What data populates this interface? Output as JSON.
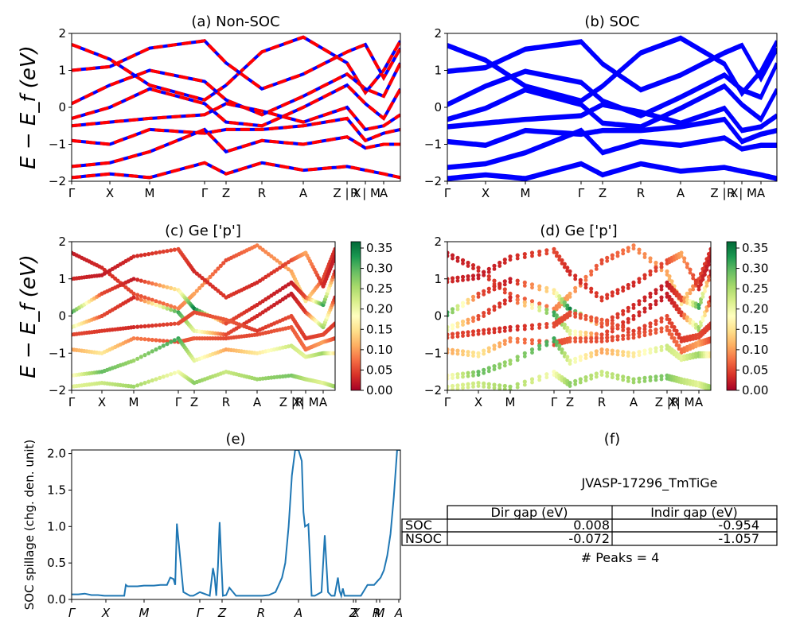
{
  "chart_data": [
    {
      "panel": "a",
      "type": "line",
      "title": "(a) Non-SOC",
      "ylabel": "E − E_f (eV)",
      "ylim": [
        -2,
        2
      ],
      "yticks": [
        "2",
        "1",
        "0",
        "−1",
        "−2"
      ],
      "kpath_labels": [
        "Γ",
        "X",
        "M",
        "Γ",
        "Z",
        "R",
        "A",
        "Z | X",
        "R | M",
        "A"
      ],
      "series": [
        {
          "color": "#ff0000",
          "dashed": true,
          "values": []
        },
        {
          "color": "#0000ff",
          "dashed": false,
          "values": []
        }
      ],
      "bands": [
        {
          "y": [
            1.7,
            1.3,
            0.6,
            0.2,
            0.6,
            1.5,
            1.9,
            1.2,
            0.4,
            1.0,
            1.8
          ]
        },
        {
          "y": [
            1.0,
            1.1,
            1.6,
            1.8,
            1.2,
            0.5,
            0.9,
            1.5,
            1.7,
            0.8,
            1.6
          ]
        },
        {
          "y": [
            0.1,
            0.6,
            1.0,
            0.7,
            0.2,
            -0.2,
            0.3,
            0.9,
            0.5,
            0.3,
            1.2
          ]
        },
        {
          "y": [
            -0.3,
            0.0,
            0.5,
            0.1,
            -0.4,
            -0.5,
            0.0,
            0.6,
            0.1,
            -0.3,
            0.5
          ]
        },
        {
          "y": [
            -0.5,
            -0.4,
            -0.3,
            -0.2,
            0.1,
            -0.1,
            -0.4,
            0.0,
            -0.6,
            -0.5,
            -0.2
          ]
        },
        {
          "y": [
            -0.9,
            -1.0,
            -0.6,
            -0.7,
            -0.6,
            -0.6,
            -0.5,
            -0.3,
            -0.9,
            -0.7,
            -0.6
          ]
        },
        {
          "y": [
            -1.6,
            -1.5,
            -1.2,
            -0.6,
            -1.2,
            -0.9,
            -1.0,
            -0.8,
            -1.1,
            -1.0,
            -1.0
          ]
        },
        {
          "y": [
            -1.9,
            -1.8,
            -1.9,
            -1.5,
            -1.8,
            -1.5,
            -1.7,
            -1.6,
            -1.7,
            -1.8,
            -1.9
          ]
        }
      ]
    },
    {
      "panel": "b",
      "type": "line",
      "title": "(b) SOC",
      "ylim": [
        -2,
        2
      ],
      "yticks": [
        "2",
        "1",
        "0",
        "−1",
        "−2"
      ],
      "kpath_labels": [
        "Γ",
        "X",
        "M",
        "Γ",
        "Z",
        "R",
        "A",
        "Z | X",
        "R | M",
        "A"
      ],
      "bands": [
        {
          "y": [
            1.7,
            1.3,
            0.6,
            0.2,
            0.6,
            1.5,
            1.9,
            1.2,
            0.4,
            1.0,
            1.8
          ]
        },
        {
          "y": [
            1.0,
            1.1,
            1.6,
            1.8,
            1.2,
            0.5,
            0.9,
            1.5,
            1.7,
            0.8,
            1.6
          ]
        },
        {
          "y": [
            0.1,
            0.6,
            1.0,
            0.7,
            0.2,
            -0.2,
            0.3,
            0.9,
            0.5,
            0.3,
            1.2
          ]
        },
        {
          "y": [
            -0.3,
            0.0,
            0.5,
            0.1,
            -0.4,
            -0.5,
            0.0,
            0.6,
            0.1,
            -0.3,
            0.5
          ]
        },
        {
          "y": [
            -0.5,
            -0.4,
            -0.3,
            -0.2,
            0.1,
            -0.1,
            -0.4,
            0.0,
            -0.6,
            -0.5,
            -0.2
          ]
        },
        {
          "y": [
            -0.9,
            -1.0,
            -0.6,
            -0.7,
            -0.6,
            -0.6,
            -0.5,
            -0.3,
            -0.9,
            -0.7,
            -0.6
          ]
        },
        {
          "y": [
            -1.6,
            -1.5,
            -1.2,
            -0.6,
            -1.2,
            -0.9,
            -1.0,
            -0.8,
            -1.1,
            -1.0,
            -1.0
          ]
        },
        {
          "y": [
            -1.9,
            -1.8,
            -1.9,
            -1.5,
            -1.8,
            -1.5,
            -1.7,
            -1.6,
            -1.7,
            -1.8,
            -1.9
          ]
        }
      ]
    },
    {
      "panel": "c",
      "type": "scatter",
      "title": "(c)  Ge ['p']",
      "ylabel": "E − E_f (eV)",
      "ylim": [
        -2,
        2
      ],
      "yticks": [
        "2",
        "1",
        "0",
        "−1",
        "−2"
      ],
      "kpath_labels": [
        "Γ",
        "X",
        "M",
        "Γ",
        "Z",
        "R",
        "A",
        "Z |R",
        "X| M",
        "A"
      ],
      "colorbar": {
        "min": 0.0,
        "max": 0.35,
        "ticks": [
          "0.35",
          "0.30",
          "0.25",
          "0.20",
          "0.15",
          "0.10",
          "0.05",
          "0.00"
        ],
        "colormap": "RdYlGn"
      },
      "bands": [
        {
          "y": [
            1.7,
            1.3,
            0.6,
            0.2,
            0.6,
            1.5,
            1.9,
            1.2,
            0.4,
            1.0,
            1.8
          ],
          "w": [
            0.02,
            0.03,
            0.05,
            0.08,
            0.1,
            0.05,
            0.08,
            0.1,
            0.15,
            0.05,
            0.03
          ]
        },
        {
          "y": [
            1.0,
            1.1,
            1.6,
            1.8,
            1.2,
            0.5,
            0.9,
            1.5,
            1.7,
            0.8,
            1.6
          ],
          "w": [
            0.03,
            0.02,
            0.03,
            0.05,
            0.03,
            0.04,
            0.03,
            0.05,
            0.1,
            0.03,
            0.02
          ]
        },
        {
          "y": [
            0.1,
            0.6,
            1.0,
            0.7,
            0.2,
            -0.2,
            0.3,
            0.9,
            0.5,
            0.3,
            1.2
          ],
          "w": [
            0.3,
            0.05,
            0.02,
            0.15,
            0.33,
            0.05,
            0.03,
            0.02,
            0.05,
            0.3,
            0.02
          ]
        },
        {
          "y": [
            -0.3,
            0.0,
            0.5,
            0.1,
            -0.4,
            -0.5,
            0.0,
            0.6,
            0.1,
            -0.3,
            0.5
          ],
          "w": [
            0.2,
            0.05,
            0.03,
            0.3,
            0.2,
            0.05,
            0.03,
            0.02,
            0.04,
            0.25,
            0.03
          ]
        },
        {
          "y": [
            -0.5,
            -0.4,
            -0.3,
            -0.2,
            0.1,
            -0.1,
            -0.4,
            0.0,
            -0.6,
            -0.5,
            -0.2
          ],
          "w": [
            0.05,
            0.04,
            0.03,
            0.05,
            0.05,
            0.06,
            0.04,
            0.05,
            0.04,
            0.05,
            0.04
          ]
        },
        {
          "y": [
            -0.9,
            -1.0,
            -0.6,
            -0.7,
            -0.6,
            -0.6,
            -0.5,
            -0.3,
            -0.9,
            -0.7,
            -0.6
          ],
          "w": [
            0.1,
            0.15,
            0.08,
            0.05,
            0.06,
            0.05,
            0.05,
            0.06,
            0.07,
            0.1,
            0.05
          ]
        },
        {
          "y": [
            -1.6,
            -1.5,
            -1.2,
            -0.6,
            -1.2,
            -0.9,
            -1.0,
            -0.8,
            -1.1,
            -1.0,
            -1.0
          ],
          "w": [
            0.17,
            0.28,
            0.25,
            0.3,
            0.2,
            0.1,
            0.15,
            0.22,
            0.2,
            0.25,
            0.15
          ]
        },
        {
          "y": [
            -1.9,
            -1.8,
            -1.9,
            -1.5,
            -1.8,
            -1.5,
            -1.7,
            -1.6,
            -1.7,
            -1.8,
            -1.9
          ],
          "w": [
            0.2,
            0.22,
            0.25,
            0.18,
            0.26,
            0.22,
            0.25,
            0.27,
            0.23,
            0.2,
            0.25
          ]
        }
      ]
    },
    {
      "panel": "d",
      "type": "scatter",
      "title": "(d) Ge ['p']",
      "ylim": [
        -2,
        2
      ],
      "yticks": [
        "2",
        "1",
        "0",
        "−1",
        "−2"
      ],
      "kpath_labels": [
        "Γ",
        "X",
        "M",
        "Γ",
        "Z",
        "R",
        "A",
        "Z |R",
        "X| M",
        "A"
      ],
      "colorbar": {
        "min": 0.0,
        "max": 0.35,
        "ticks": [
          "0.35",
          "0.30",
          "0.25",
          "0.20",
          "0.15",
          "0.10",
          "0.05",
          "0.00"
        ],
        "colormap": "RdYlGn"
      },
      "bands": [
        {
          "y": [
            1.7,
            1.3,
            0.6,
            0.2,
            0.6,
            1.5,
            1.9,
            1.2,
            0.4,
            1.0,
            1.8
          ],
          "w": [
            0.02,
            0.03,
            0.05,
            0.08,
            0.1,
            0.05,
            0.08,
            0.1,
            0.15,
            0.05,
            0.03
          ]
        },
        {
          "y": [
            1.0,
            1.1,
            1.6,
            1.8,
            1.2,
            0.5,
            0.9,
            1.5,
            1.7,
            0.8,
            1.6
          ],
          "w": [
            0.03,
            0.02,
            0.03,
            0.05,
            0.03,
            0.04,
            0.03,
            0.05,
            0.1,
            0.03,
            0.02
          ]
        },
        {
          "y": [
            0.1,
            0.6,
            1.0,
            0.7,
            0.2,
            -0.2,
            0.3,
            0.9,
            0.5,
            0.3,
            1.2
          ],
          "w": [
            0.3,
            0.05,
            0.02,
            0.15,
            0.33,
            0.05,
            0.03,
            0.02,
            0.05,
            0.3,
            0.02
          ]
        },
        {
          "y": [
            -0.3,
            0.0,
            0.5,
            0.1,
            -0.4,
            -0.5,
            0.0,
            0.6,
            0.1,
            -0.3,
            0.5
          ],
          "w": [
            0.2,
            0.05,
            0.03,
            0.3,
            0.2,
            0.05,
            0.03,
            0.02,
            0.04,
            0.25,
            0.03
          ]
        },
        {
          "y": [
            -0.5,
            -0.4,
            -0.3,
            -0.2,
            0.1,
            -0.1,
            -0.4,
            0.0,
            -0.6,
            -0.5,
            -0.2
          ],
          "w": [
            0.05,
            0.04,
            0.03,
            0.05,
            0.05,
            0.06,
            0.04,
            0.05,
            0.04,
            0.05,
            0.04
          ]
        },
        {
          "y": [
            -0.9,
            -1.0,
            -0.6,
            -0.7,
            -0.6,
            -0.6,
            -0.5,
            -0.3,
            -0.9,
            -0.7,
            -0.6
          ],
          "w": [
            0.1,
            0.15,
            0.08,
            0.05,
            0.06,
            0.05,
            0.05,
            0.06,
            0.07,
            0.1,
            0.05
          ]
        },
        {
          "y": [
            -1.6,
            -1.5,
            -1.2,
            -0.6,
            -1.2,
            -0.9,
            -1.0,
            -0.8,
            -1.1,
            -1.0,
            -1.0
          ],
          "w": [
            0.17,
            0.28,
            0.25,
            0.3,
            0.2,
            0.1,
            0.15,
            0.22,
            0.2,
            0.25,
            0.15
          ]
        },
        {
          "y": [
            -1.9,
            -1.8,
            -1.9,
            -1.5,
            -1.8,
            -1.5,
            -1.7,
            -1.6,
            -1.7,
            -1.8,
            -1.9
          ],
          "w": [
            0.2,
            0.22,
            0.25,
            0.18,
            0.26,
            0.22,
            0.25,
            0.27,
            0.23,
            0.2,
            0.25
          ]
        }
      ]
    },
    {
      "panel": "e",
      "type": "line",
      "title": "(e)",
      "ylabel": "SOC spillage (chg. den. unit)",
      "ylim": [
        0,
        2.05
      ],
      "yticks": [
        "2.0",
        "1.5",
        "1.0",
        "0.5",
        "0.0"
      ],
      "kpath_labels": [
        "Γ",
        "X",
        "M",
        "Γ",
        "Z",
        "R",
        "A",
        "Z",
        "X",
        "R",
        "M",
        "A"
      ],
      "color": "#1f77b4",
      "x": [
        0,
        0.02,
        0.04,
        0.06,
        0.08,
        0.1,
        0.12,
        0.14,
        0.16,
        0.165,
        0.17,
        0.2,
        0.22,
        0.25,
        0.27,
        0.28,
        0.29,
        0.3,
        0.305,
        0.31,
        0.315,
        0.32,
        0.34,
        0.36,
        0.37,
        0.39,
        0.42,
        0.43,
        0.435,
        0.44,
        0.445,
        0.45,
        0.46,
        0.47,
        0.48,
        0.5,
        0.52,
        0.54,
        0.55,
        0.56,
        0.58,
        0.6,
        0.62,
        0.63,
        0.64,
        0.65,
        0.66,
        0.67,
        0.68,
        0.685,
        0.69,
        0.7,
        0.705,
        0.71,
        0.72,
        0.73,
        0.74,
        0.76,
        0.77,
        0.78,
        0.79,
        0.8,
        0.81,
        0.815,
        0.82,
        0.825,
        0.83,
        0.84,
        0.845,
        0.85,
        0.86,
        0.87,
        0.88,
        0.9,
        0.92,
        0.93,
        0.94,
        0.95,
        0.96,
        0.97,
        0.98,
        0.99,
        1.0
      ],
      "values": [
        0.07,
        0.07,
        0.08,
        0.06,
        0.06,
        0.05,
        0.05,
        0.05,
        0.05,
        0.2,
        0.18,
        0.18,
        0.19,
        0.19,
        0.2,
        0.2,
        0.2,
        0.3,
        0.29,
        0.28,
        0.2,
        1.04,
        0.1,
        0.05,
        0.05,
        0.1,
        0.05,
        0.43,
        0.3,
        0.05,
        0.45,
        1.06,
        0.05,
        0.06,
        0.16,
        0.05,
        0.05,
        0.05,
        0.05,
        0.05,
        0.05,
        0.06,
        0.1,
        0.2,
        0.3,
        0.5,
        1.0,
        1.7,
        2.05,
        2.05,
        2.05,
        1.9,
        1.2,
        1.0,
        1.03,
        0.05,
        0.05,
        0.1,
        0.88,
        0.1,
        0.05,
        0.05,
        0.3,
        0.12,
        0.05,
        0.15,
        0.05,
        0.05,
        0.05,
        0.05,
        0.05,
        0.05,
        0.05,
        0.2,
        0.2,
        0.25,
        0.3,
        0.4,
        0.6,
        0.9,
        1.4,
        2.05,
        2.05
      ]
    }
  ],
  "table_panel": {
    "title": "(f)",
    "material": "JVASP-17296_TmTiGe",
    "headers": [
      "",
      "Dir gap (eV)",
      "Indir gap (eV)"
    ],
    "rows": [
      [
        "SOC",
        "0.008",
        "-0.954"
      ],
      [
        "NSOC",
        "-0.072",
        "-1.057"
      ]
    ],
    "peaks": "# Peaks = 4"
  }
}
